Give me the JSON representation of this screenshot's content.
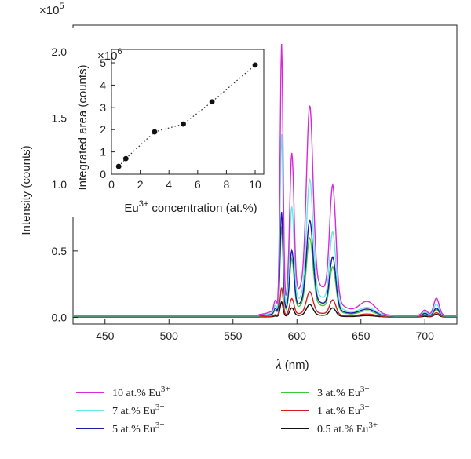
{
  "chart_data": [
    {
      "type": "line",
      "xlabel_symbol": "λ",
      "xlabel_unit": "(nm)",
      "ylabel": "Intensity (counts)",
      "y_multiplier_base": "×10",
      "y_multiplier_exp": "5",
      "xlim": [
        425,
        725
      ],
      "ylim": [
        -0.05,
        2.2
      ],
      "xticks": [
        450,
        500,
        550,
        600,
        650,
        700
      ],
      "yticks": [
        0.0,
        0.5,
        1.0,
        1.5,
        2.0
      ],
      "ytick_labels": [
        "0.0",
        "0.5",
        "1.0",
        "1.5",
        "2.0"
      ],
      "grid": false,
      "legend_position": "bottom",
      "series": [
        {
          "name": "10 at.% Eu",
          "sup": "3+",
          "color": "#d62ad6",
          "peaks": [
            [
              583,
              0.07
            ],
            [
              588,
              1.97
            ],
            [
              596,
              1.08
            ],
            [
              610,
              1.34
            ],
            [
              628,
              0.84
            ],
            [
              655,
              0.1
            ],
            [
              700,
              0.04
            ],
            [
              709,
              0.13
            ]
          ],
          "base": 0.015
        },
        {
          "name": "7 at.% Eu",
          "sup": "3+",
          "color": "#66e6e6",
          "peaks": [
            [
              583,
              0.05
            ],
            [
              588,
              1.32
            ],
            [
              596,
              0.73
            ],
            [
              610,
              0.87
            ],
            [
              628,
              0.54
            ],
            [
              655,
              0.06
            ],
            [
              700,
              0.03
            ],
            [
              709,
              0.09
            ]
          ],
          "base": 0.012
        },
        {
          "name": "5 at.% Eu",
          "sup": "3+",
          "color": "#1a1aa8",
          "peaks": [
            [
              583,
              0.04
            ],
            [
              588,
              0.75
            ],
            [
              596,
              0.43
            ],
            [
              610,
              0.61
            ],
            [
              628,
              0.38
            ],
            [
              655,
              0.05
            ],
            [
              700,
              0.02
            ],
            [
              709,
              0.06
            ]
          ],
          "base": 0.01
        },
        {
          "name": "3 at.% Eu",
          "sup": "3+",
          "color": "#3cc83c",
          "peaks": [
            [
              583,
              0.03
            ],
            [
              588,
              0.65
            ],
            [
              596,
              0.38
            ],
            [
              610,
              0.5
            ],
            [
              628,
              0.32
            ],
            [
              655,
              0.04
            ],
            [
              700,
              0.02
            ],
            [
              709,
              0.05
            ]
          ],
          "base": 0.008
        },
        {
          "name": "1 at.% Eu",
          "sup": "3+",
          "color": "#d42020",
          "peaks": [
            [
              583,
              0.01
            ],
            [
              588,
              0.21
            ],
            [
              596,
              0.12
            ],
            [
              610,
              0.16
            ],
            [
              628,
              0.11
            ],
            [
              655,
              0.02
            ],
            [
              700,
              0.01
            ],
            [
              709,
              0.03
            ]
          ],
          "base": 0.005
        },
        {
          "name": "0.5 at.% Eu",
          "sup": "3+",
          "color": "#111111",
          "peaks": [
            [
              583,
              0.005
            ],
            [
              588,
              0.11
            ],
            [
              596,
              0.06
            ],
            [
              610,
              0.08
            ],
            [
              628,
              0.06
            ],
            [
              655,
              0.01
            ],
            [
              700,
              0.005
            ],
            [
              709,
              0.02
            ]
          ],
          "base": 0.003
        }
      ]
    },
    {
      "type": "scatter",
      "xlabel": "Eu",
      "xlabel_sup": "3+",
      "xlabel_rest": " concentration (at.%)",
      "ylabel": "Integrated area (counts)",
      "y_multiplier_base": "×10",
      "y_multiplier_exp": "6",
      "xlim": [
        0,
        10.6
      ],
      "ylim": [
        0,
        5.6
      ],
      "xticks": [
        0,
        2,
        4,
        6,
        8,
        10
      ],
      "yticks": [
        0,
        1,
        2,
        3,
        4,
        5
      ],
      "x": [
        0.5,
        1,
        3,
        5,
        7,
        10
      ],
      "y": [
        0.35,
        0.7,
        1.9,
        2.25,
        3.25,
        4.9
      ],
      "line_style": "dotted",
      "grid": false
    }
  ]
}
